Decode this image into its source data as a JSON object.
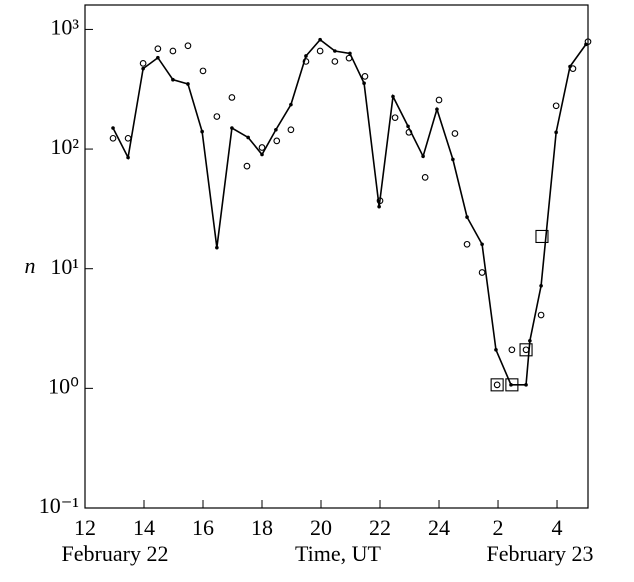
{
  "chart_data": {
    "type": "line",
    "ylabel": "n",
    "xlabel": "Time, UT",
    "date_left": "February 22",
    "date_right": "February 23",
    "log_y": true,
    "xlim": [
      12,
      29.05
    ],
    "ylim": [
      0.1,
      1600
    ],
    "xticks": [
      12,
      14,
      16,
      18,
      20,
      22,
      24,
      {
        "value": 26,
        "label": "2"
      },
      {
        "value": 28,
        "label": "4"
      }
    ],
    "yticks": [
      {
        "value": 0.1,
        "label": "10⁻¹"
      },
      {
        "value": 1,
        "label": "10⁰"
      },
      {
        "value": 10,
        "label": "10¹"
      },
      {
        "value": 100,
        "label": "10²"
      },
      {
        "value": 1000,
        "label": "10³"
      }
    ],
    "series": [
      {
        "style": "line",
        "color": "#000000",
        "x": [
          12.95,
          13.46,
          13.97,
          14.47,
          14.98,
          15.49,
          15.97,
          16.47,
          16.98,
          17.53,
          18.0,
          18.47,
          18.98,
          19.49,
          19.97,
          20.47,
          20.98,
          21.46,
          21.97,
          22.44,
          22.95,
          23.46,
          23.93,
          24.47,
          24.95,
          25.46,
          25.93,
          26.44,
          26.95,
          27.08,
          27.46,
          27.97,
          28.44,
          28.98
        ],
        "values": [
          150,
          85,
          470,
          580,
          380,
          350,
          140,
          15,
          150,
          125,
          90,
          145,
          235,
          600,
          820,
          660,
          630,
          355,
          33,
          275,
          155,
          87,
          215,
          82,
          27,
          16,
          2.1,
          1.07,
          1.07,
          2.5,
          7.2,
          138,
          490,
          750
        ]
      },
      {
        "style": "circle",
        "color": "#000000",
        "x": [
          12.95,
          13.46,
          13.97,
          14.47,
          14.98,
          15.49,
          16.0,
          16.47,
          16.98,
          17.49,
          18.0,
          18.5,
          18.98,
          19.49,
          19.97,
          20.47,
          20.95,
          21.49,
          22.0,
          22.51,
          22.98,
          23.53,
          24.0,
          24.54,
          24.95,
          25.46,
          25.97,
          26.47,
          26.95,
          27.46,
          27.97,
          28.54,
          29.05
        ],
        "values": [
          123,
          123,
          520,
          690,
          660,
          730,
          450,
          187,
          270,
          72,
          103,
          117,
          145,
          540,
          660,
          540,
          575,
          405,
          37,
          183,
          138,
          58,
          257,
          135,
          16,
          9.3,
          1.07,
          2.1,
          2.1,
          4.1,
          230,
          470,
          790
        ]
      },
      {
        "style": "square",
        "color": "#000000",
        "x": [
          25.97,
          26.47,
          26.95,
          27.49
        ],
        "values": [
          1.07,
          1.07,
          2.1,
          18.6
        ]
      }
    ]
  }
}
